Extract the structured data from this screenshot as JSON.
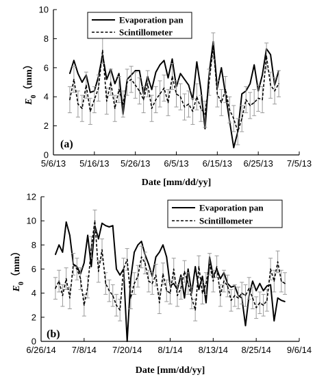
{
  "chart_data": [
    {
      "type": "line",
      "panel_label": "(a)",
      "xlabel": "Date [mm/dd/yy]",
      "ylabel": "E0 (mm)",
      "ylabel_main": "E",
      "ylabel_sub": "0",
      "ylabel_unit": "（mm）",
      "xlim": [
        "2013-05-06",
        "2013-07-05"
      ],
      "ylim": [
        0,
        10
      ],
      "yticks": [
        0,
        2,
        4,
        6,
        8,
        10
      ],
      "xticks": [
        "2013-05-06",
        "2013-05-16",
        "2013-05-26",
        "2013-06-05",
        "2013-06-15",
        "2013-06-25",
        "2013-07-05"
      ],
      "xtick_labels": [
        "5/6/13",
        "5/16/13",
        "5/26/13",
        "6/5/13",
        "6/15/13",
        "6/25/13",
        "7/5/13"
      ],
      "grid": false,
      "legend_position": "top-right",
      "series": [
        {
          "name": "Evaporation pan",
          "style": "solid",
          "x": [
            "2013-05-10",
            "2013-05-11",
            "2013-05-12",
            "2013-05-13",
            "2013-05-14",
            "2013-05-15",
            "2013-05-16",
            "2013-05-17",
            "2013-05-18",
            "2013-05-19",
            "2013-05-20",
            "2013-05-21",
            "2013-05-22",
            "2013-05-23",
            "2013-05-24",
            "2013-05-25",
            "2013-05-26",
            "2013-05-27",
            "2013-05-28",
            "2013-05-29",
            "2013-05-30",
            "2013-05-31",
            "2013-06-01",
            "2013-06-02",
            "2013-06-03",
            "2013-06-04",
            "2013-06-05",
            "2013-06-06",
            "2013-06-07",
            "2013-06-08",
            "2013-06-09",
            "2013-06-10",
            "2013-06-11",
            "2013-06-12",
            "2013-06-13",
            "2013-06-14",
            "2013-06-15",
            "2013-06-16",
            "2013-06-19",
            "2013-06-20",
            "2013-06-21",
            "2013-06-22",
            "2013-06-23",
            "2013-06-24",
            "2013-06-25",
            "2013-06-26",
            "2013-06-27",
            "2013-06-28",
            "2013-06-29",
            "2013-06-30"
          ],
          "values": [
            5.6,
            6.5,
            5.6,
            5.0,
            5.5,
            4.3,
            4.4,
            5.4,
            6.9,
            5.2,
            5.9,
            4.9,
            5.6,
            2.8,
            5.2,
            5.5,
            5.8,
            5.8,
            4.2,
            5.4,
            4.5,
            5.7,
            6.2,
            6.5,
            5.3,
            6.6,
            4.7,
            5.6,
            5.2,
            4.8,
            3.8,
            6.4,
            4.5,
            1.8,
            5.6,
            7.8,
            4.6,
            6.0,
            0.5,
            1.6,
            4.2,
            4.4,
            4.9,
            6.2,
            4.4,
            5.5,
            7.3,
            6.9,
            4.8,
            5.8
          ]
        },
        {
          "name": "Scintillometer",
          "style": "dashed",
          "x": [
            "2013-05-10",
            "2013-05-11",
            "2013-05-12",
            "2013-05-13",
            "2013-05-14",
            "2013-05-15",
            "2013-05-16",
            "2013-05-17",
            "2013-05-18",
            "2013-05-19",
            "2013-05-20",
            "2013-05-21",
            "2013-05-22",
            "2013-05-23",
            "2013-05-24",
            "2013-05-25",
            "2013-05-26",
            "2013-05-27",
            "2013-05-28",
            "2013-05-29",
            "2013-05-30",
            "2013-05-31",
            "2013-06-01",
            "2013-06-02",
            "2013-06-03",
            "2013-06-04",
            "2013-06-05",
            "2013-06-06",
            "2013-06-07",
            "2013-06-08",
            "2013-06-09",
            "2013-06-10",
            "2013-06-11",
            "2013-06-12",
            "2013-06-13",
            "2013-06-14",
            "2013-06-15",
            "2013-06-16",
            "2013-06-17",
            "2013-06-18",
            "2013-06-19",
            "2013-06-20",
            "2013-06-21",
            "2013-06-22",
            "2013-06-23",
            "2013-06-24",
            "2013-06-25",
            "2013-06-26",
            "2013-06-27",
            "2013-06-28",
            "2013-06-29",
            "2013-06-30"
          ],
          "values": [
            3.8,
            5.2,
            3.5,
            3.2,
            4.8,
            3.0,
            3.8,
            4.6,
            7.2,
            3.7,
            5.0,
            3.2,
            4.5,
            3.5,
            5.0,
            5.2,
            4.8,
            4.4,
            3.8,
            4.9,
            3.2,
            3.8,
            4.2,
            4.6,
            3.6,
            5.4,
            4.2,
            4.0,
            3.3,
            3.5,
            3.0,
            4.0,
            3.2,
            2.8,
            5.0,
            7.5,
            4.2,
            3.6,
            4.5,
            3.1,
            2.5,
            1.6,
            2.5,
            3.8,
            3.4,
            3.6,
            3.9,
            3.8,
            6.8,
            4.8,
            4.4,
            4.9
          ],
          "error": [
            0.9,
            0.9,
            0.9,
            0.9,
            0.9,
            0.9,
            0.9,
            0.9,
            0.9,
            0.9,
            0.9,
            0.9,
            0.9,
            0.9,
            0.9,
            0.9,
            0.9,
            0.9,
            0.9,
            0.9,
            0.9,
            0.9,
            0.9,
            0.9,
            0.9,
            0.9,
            0.9,
            0.9,
            0.9,
            0.9,
            0.9,
            0.9,
            0.9,
            0.9,
            0.9,
            0.9,
            0.9,
            0.9,
            0.9,
            0.9,
            0.9,
            0.9,
            0.9,
            0.9,
            0.9,
            0.9,
            0.9,
            0.9,
            0.9,
            0.9,
            0.9,
            0.9
          ]
        }
      ]
    },
    {
      "type": "line",
      "panel_label": "(b)",
      "xlabel": "Date [mm/dd/yy]",
      "ylabel": "E0 (mm)",
      "ylabel_main": "E",
      "ylabel_sub": "0",
      "ylabel_unit": "（mm）",
      "xlim": [
        "2014-06-26",
        "2014-09-06"
      ],
      "ylim": [
        0,
        12
      ],
      "yticks": [
        0,
        2,
        4,
        6,
        8,
        10,
        12
      ],
      "xticks": [
        "2014-06-26",
        "2014-07-08",
        "2014-07-20",
        "2014-08-01",
        "2014-08-13",
        "2014-08-25",
        "2014-09-06"
      ],
      "xtick_labels": [
        "6/26/14",
        "7/8/14",
        "7/20/14",
        "8/1/14",
        "8/13/14",
        "8/25/14",
        "9/6/14"
      ],
      "grid": false,
      "legend_position": "top-right",
      "series": [
        {
          "name": "Evaporation pan",
          "style": "solid",
          "x": [
            "2014-06-30",
            "2014-07-01",
            "2014-07-02",
            "2014-07-03",
            "2014-07-04",
            "2014-07-05",
            "2014-07-06",
            "2014-07-07",
            "2014-07-08",
            "2014-07-09",
            "2014-07-10",
            "2014-07-11",
            "2014-07-12",
            "2014-07-13",
            "2014-07-14",
            "2014-07-15",
            "2014-07-16",
            "2014-07-17",
            "2014-07-18",
            "2014-07-19",
            "2014-07-20",
            "2014-07-21",
            "2014-07-22",
            "2014-07-23",
            "2014-07-24",
            "2014-07-25",
            "2014-07-26",
            "2014-07-27",
            "2014-07-28",
            "2014-07-29",
            "2014-07-30",
            "2014-07-31",
            "2014-08-01",
            "2014-08-02",
            "2014-08-03",
            "2014-08-04",
            "2014-08-05",
            "2014-08-06",
            "2014-08-07",
            "2014-08-08",
            "2014-08-09",
            "2014-08-10",
            "2014-08-11",
            "2014-08-12",
            "2014-08-13",
            "2014-08-14",
            "2014-08-15",
            "2014-08-16",
            "2014-08-17",
            "2014-08-18",
            "2014-08-19",
            "2014-08-20",
            "2014-08-21",
            "2014-08-22",
            "2014-08-23",
            "2014-08-24",
            "2014-08-25",
            "2014-08-26",
            "2014-08-27",
            "2014-08-28",
            "2014-08-29",
            "2014-08-30",
            "2014-08-31",
            "2014-09-01",
            "2014-09-02"
          ],
          "values": [
            7.2,
            8.0,
            7.4,
            9.9,
            8.8,
            6.4,
            6.2,
            5.6,
            6.5,
            8.8,
            6.2,
            9.6,
            8.5,
            9.8,
            9.6,
            9.5,
            9.6,
            6.0,
            5.5,
            6.0,
            0.0,
            5.2,
            7.4,
            8.0,
            8.3,
            7.2,
            6.4,
            5.4,
            7.0,
            7.4,
            8.0,
            7.0,
            4.6,
            4.8,
            4.3,
            5.5,
            3.6,
            6.0,
            4.0,
            6.2,
            4.3,
            5.4,
            3.2,
            7.0,
            5.4,
            6.0,
            5.2,
            5.7,
            4.8,
            4.5,
            4.6,
            3.8,
            3.6,
            1.3,
            3.8,
            5.0,
            4.2,
            4.8,
            4.2,
            4.6,
            4.7,
            1.7,
            3.6,
            3.4,
            3.3
          ]
        },
        {
          "name": "Scintillometer",
          "style": "dashed",
          "x": [
            "2014-06-30",
            "2014-07-01",
            "2014-07-02",
            "2014-07-03",
            "2014-07-04",
            "2014-07-05",
            "2014-07-06",
            "2014-07-07",
            "2014-07-08",
            "2014-07-09",
            "2014-07-10",
            "2014-07-11",
            "2014-07-12",
            "2014-07-13",
            "2014-07-14",
            "2014-07-15",
            "2014-07-16",
            "2014-07-17",
            "2014-07-18",
            "2014-07-19",
            "2014-07-20",
            "2014-07-21",
            "2014-07-22",
            "2014-07-23",
            "2014-07-24",
            "2014-07-25",
            "2014-07-26",
            "2014-07-27",
            "2014-07-28",
            "2014-07-29",
            "2014-07-30",
            "2014-07-31",
            "2014-08-01",
            "2014-08-02",
            "2014-08-03",
            "2014-08-04",
            "2014-08-05",
            "2014-08-06",
            "2014-08-07",
            "2014-08-08",
            "2014-08-09",
            "2014-08-10",
            "2014-08-11",
            "2014-08-12",
            "2014-08-13",
            "2014-08-14",
            "2014-08-15",
            "2014-08-16",
            "2014-08-17",
            "2014-08-18",
            "2014-08-19",
            "2014-08-20",
            "2014-08-21",
            "2014-08-22",
            "2014-08-23",
            "2014-08-24",
            "2014-08-25",
            "2014-08-26",
            "2014-08-27",
            "2014-08-28",
            "2014-08-29",
            "2014-08-30",
            "2014-08-31",
            "2014-09-01",
            "2014-09-02"
          ],
          "values": [
            4.4,
            5.0,
            3.8,
            5.2,
            3.6,
            6.4,
            6.0,
            5.2,
            3.0,
            4.5,
            7.8,
            10.0,
            5.8,
            7.6,
            4.8,
            4.2,
            3.8,
            3.0,
            2.6,
            6.0,
            6.8,
            3.6,
            4.8,
            5.4,
            7.0,
            6.5,
            5.0,
            4.8,
            5.5,
            3.2,
            5.6,
            4.2,
            4.0,
            6.0,
            3.8,
            4.4,
            5.8,
            4.8,
            3.6,
            2.6,
            6.2,
            4.0,
            4.8,
            6.4,
            5.0,
            6.2,
            3.8,
            5.0,
            4.6,
            3.4,
            3.8,
            3.6,
            4.0,
            3.8,
            4.4,
            3.6,
            2.8,
            3.2,
            3.0,
            3.4,
            6.0,
            5.0,
            6.6,
            5.0,
            4.8
          ],
          "error": [
            0.9,
            0.9,
            0.9,
            0.9,
            0.9,
            0.9,
            0.9,
            0.9,
            0.9,
            0.9,
            0.9,
            0.9,
            0.9,
            0.9,
            0.9,
            0.9,
            0.9,
            0.9,
            0.9,
            0.9,
            0.9,
            0.9,
            0.9,
            0.9,
            0.9,
            0.9,
            0.9,
            0.9,
            0.9,
            0.9,
            0.9,
            0.9,
            0.9,
            0.9,
            0.9,
            0.9,
            0.9,
            0.9,
            0.9,
            0.9,
            0.9,
            0.9,
            0.9,
            0.9,
            0.9,
            0.9,
            0.9,
            0.9,
            0.9,
            0.9,
            0.9,
            0.9,
            0.9,
            0.9,
            0.9,
            0.9,
            0.9,
            0.9,
            0.9,
            0.9,
            0.9,
            0.9,
            0.9,
            0.9,
            0.9
          ]
        }
      ]
    }
  ]
}
